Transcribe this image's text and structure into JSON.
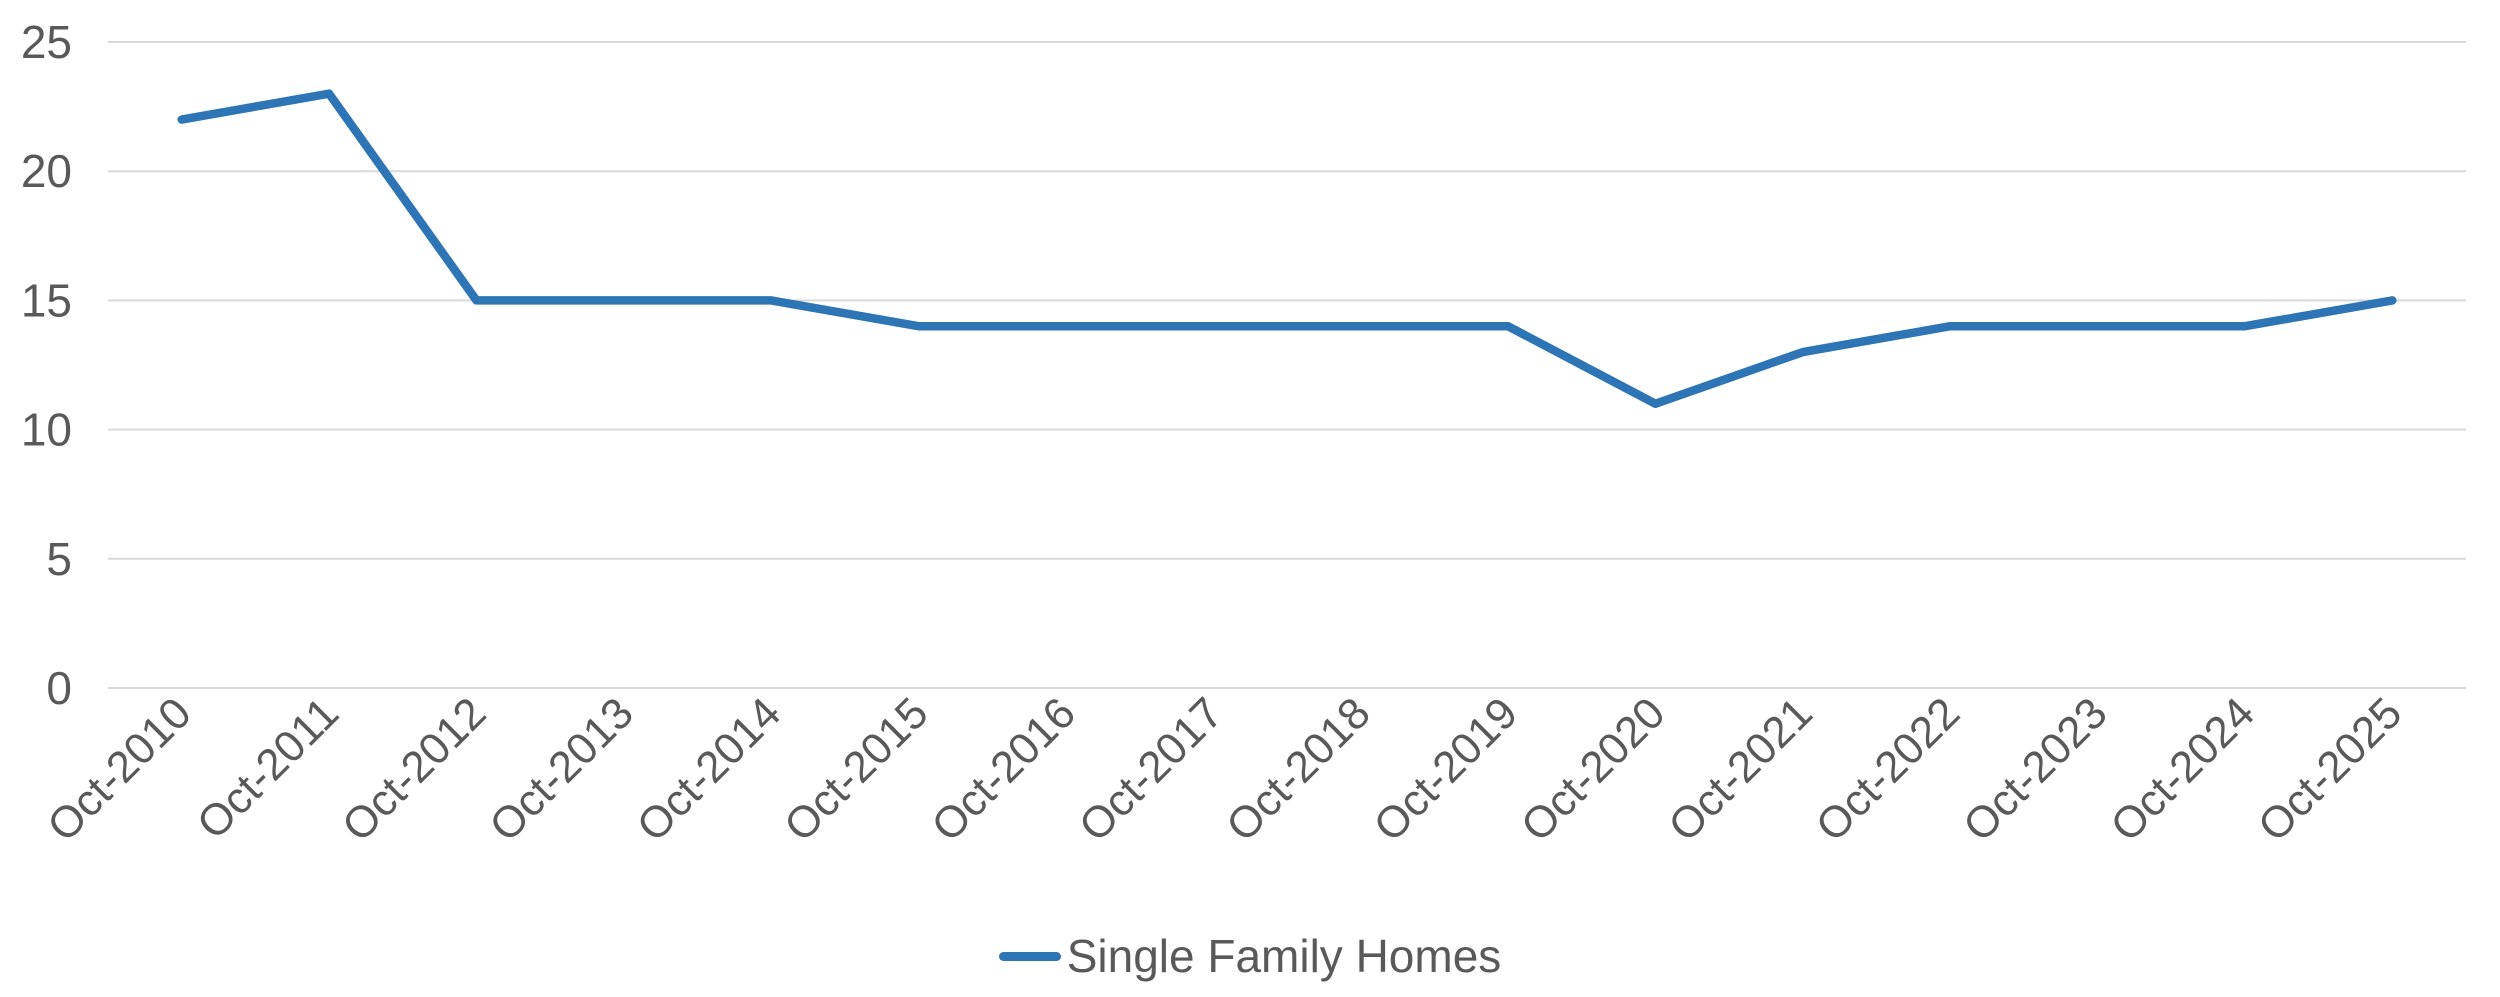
{
  "chart_data": {
    "type": "line",
    "categories": [
      "Oct-2010",
      "Oct-2011",
      "Oct-2012",
      "Oct-2013",
      "Oct-2014",
      "Oct-2015",
      "Oct-2016",
      "Oct-2017",
      "Oct-2018",
      "Oct-2019",
      "Oct-2020",
      "Oct-2021",
      "Oct-2022",
      "Oct-2023",
      "Oct-2024",
      "Oct-2025"
    ],
    "series": [
      {
        "name": "Single Family Homes",
        "values": [
          22,
          23,
          15,
          15,
          15,
          14,
          14,
          14,
          14,
          14,
          11,
          13,
          14,
          14,
          14,
          15
        ]
      }
    ],
    "ylim": [
      0,
      25
    ],
    "yticks": [
      0,
      5,
      10,
      15,
      20,
      25
    ],
    "grid": "horizontal-only",
    "legend_position": "bottom-center",
    "x_tick_rotation_degrees": 45,
    "colors": {
      "line": "#2E75B6",
      "grid": "#D9D9D9",
      "axis_text": "#595959",
      "background": "#FFFFFF"
    }
  }
}
